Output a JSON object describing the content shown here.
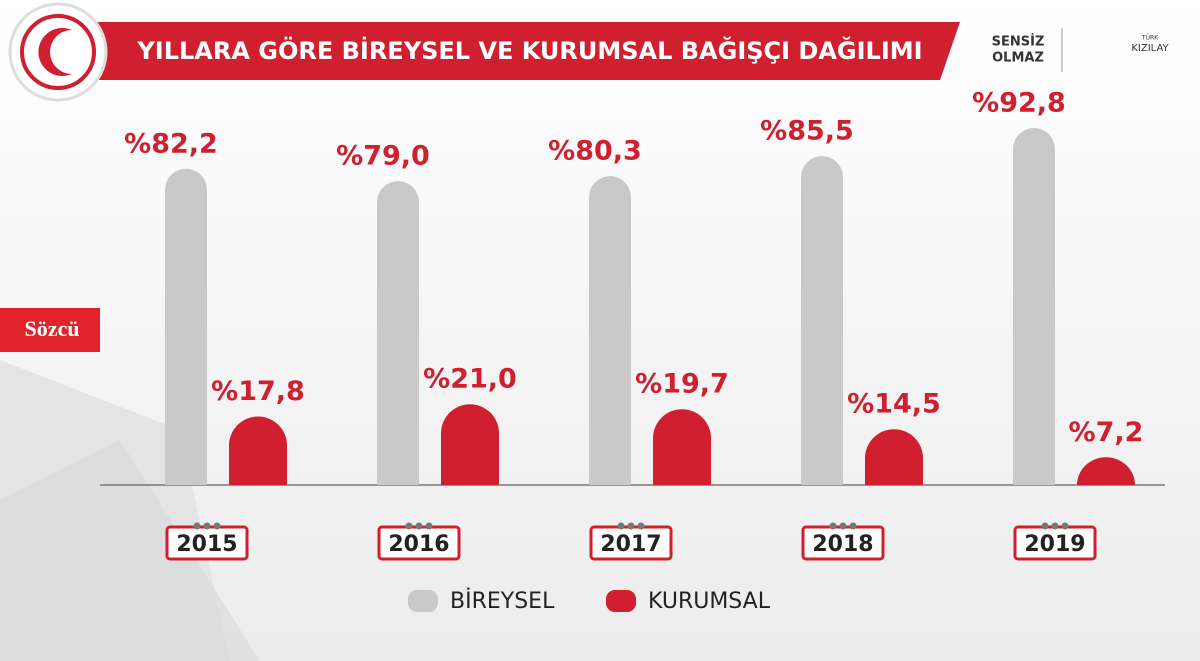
{
  "chart_data": {
    "type": "bar",
    "title": "YILLARA GÖRE BİREYSEL VE KURUMSAL BAĞIŞÇI DAĞILIMI",
    "categories": [
      "2015",
      "2016",
      "2017",
      "2018",
      "2019"
    ],
    "series": [
      {
        "name": "BİREYSEL",
        "color": "#c9c9c9",
        "values": [
          82.2,
          79.0,
          80.3,
          85.5,
          92.8
        ],
        "value_labels": [
          "%82,2",
          "%79,0",
          "%80,3",
          "%85,5",
          "%92,8"
        ]
      },
      {
        "name": "KURUMSAL",
        "color": "#d01f2e",
        "values": [
          17.8,
          21.0,
          19.7,
          14.5,
          7.2
        ],
        "value_labels": [
          "%17,8",
          "%21,0",
          "%19,7",
          "%14,5",
          "%7,2"
        ]
      }
    ],
    "logos": {
      "sensiz": "SENSİZ",
      "olmaz": "OLMAZ",
      "turk": "TÜRK",
      "kizilay": "KIZILAY",
      "sozcu": "Sözcü"
    }
  }
}
